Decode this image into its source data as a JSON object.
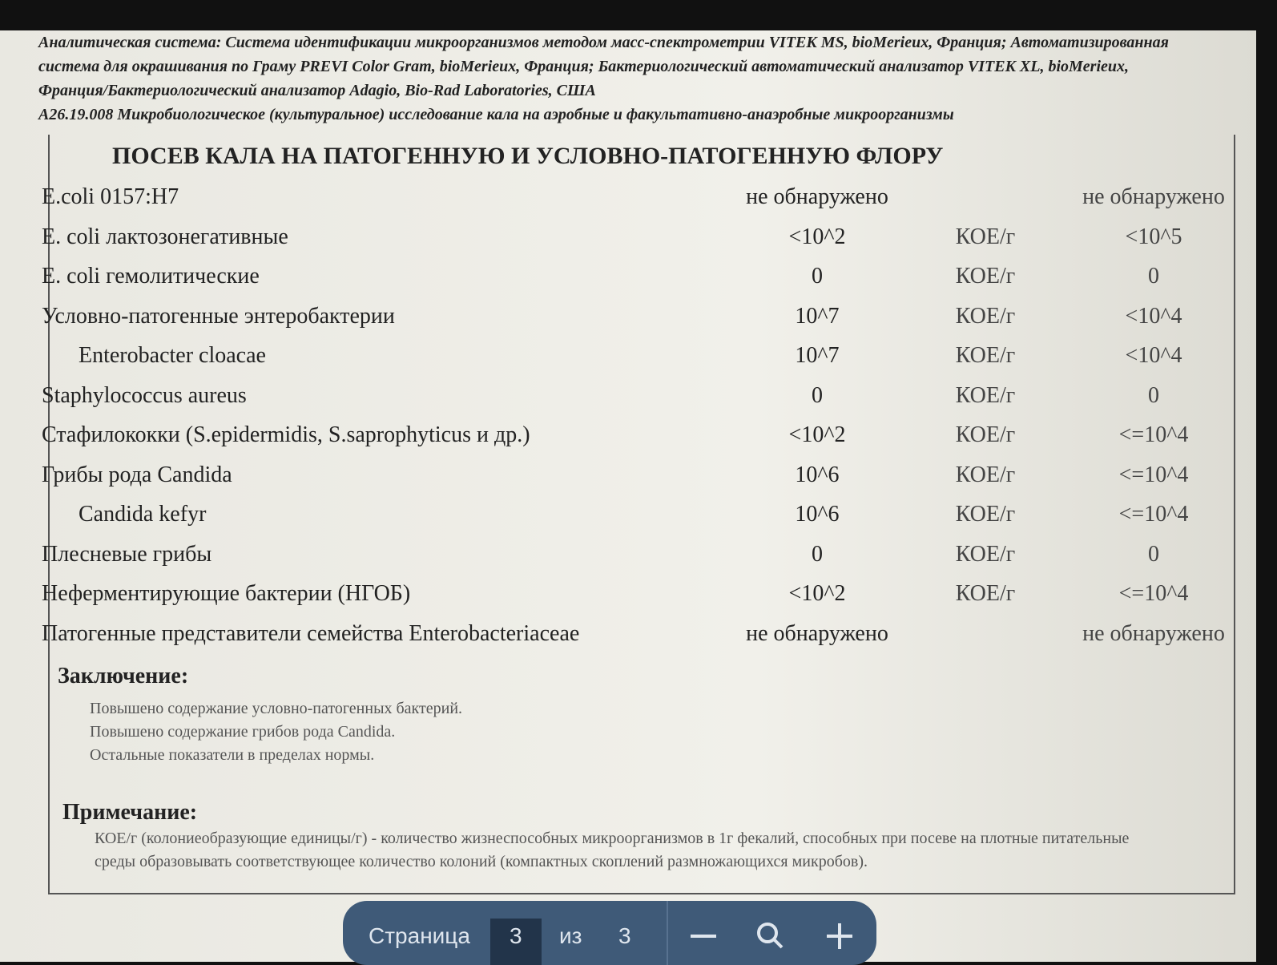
{
  "header": {
    "lines": [
      "Аналитическая система: Система идентификации микроорганизмов методом масс-спектрометрии VITEK MS, bioMerieux, Франция; Автоматизированная система для окрашивания по Граму PREVI Color Gram, bioMerieux, Франция; Бактериологический автоматический анализатор VITEK XL, bioMerieux, Франция/Бактериологический анализатор Adagio, Bio-Rad Laboratories, США",
      "A26.19.008 Микробиологическое (культуральное) исследование кала на аэробные и факультативно-анаэробные микроорганизмы"
    ]
  },
  "report": {
    "title": "ПОСЕВ КАЛА НА ПАТОГЕННУЮ И УСЛОВНО-ПАТОГЕННУЮ ФЛОРУ",
    "rows": [
      {
        "name": "E.coli 0157:H7",
        "result": "не обнаружено",
        "norm": "не обнаружено"
      },
      {
        "name": "E. coli лактозонегативные",
        "result": "<10^2",
        "unit": "КОЕ/г",
        "norm": "<10^5"
      },
      {
        "name": "E. coli гемолитические",
        "result": "0",
        "unit": "КОЕ/г",
        "norm": "0"
      },
      {
        "name": "Условно-патогенные энтеробактерии",
        "result": "10^7",
        "unit": "КОЕ/г",
        "norm": "<10^4"
      },
      {
        "name": "Enterobacter cloacae",
        "result": "10^7",
        "unit": "КОЕ/г",
        "norm": "<10^4"
      },
      {
        "name": "Staphylococcus aureus",
        "result": "0",
        "unit": "КОЕ/г",
        "norm": "0"
      },
      {
        "name": "Стафилококки (S.epidermidis, S.saprophyticus и др.)",
        "result": "<10^2",
        "unit": "КОЕ/г",
        "norm": "<=10^4"
      },
      {
        "name": "Грибы рода Candida",
        "result": "10^6",
        "unit": "КОЕ/г",
        "norm": "<=10^4"
      },
      {
        "name": "Candida kefyr",
        "result": "10^6",
        "unit": "КОЕ/г",
        "norm": "<=10^4"
      },
      {
        "name": "Плесневые грибы",
        "result": "0",
        "unit": "КОЕ/г",
        "norm": "0"
      },
      {
        "name": "Неферментирующие бактерии (НГОБ)",
        "result": "<10^2",
        "unit": "КОЕ/г",
        "norm": "<=10^4"
      },
      {
        "name": "Патогенные представители семейства Enterobacteriaceae",
        "result": "не обнаружено",
        "norm": "не обнаружено"
      }
    ],
    "conclusion": {
      "label": "Заключение:",
      "lines": [
        "Повышено содержание условно-патогенных бактерий.",
        "Повышено содержание грибов рода Candida.",
        "Остальные показатели в пределах нормы."
      ]
    },
    "note": {
      "label": "Примечание:",
      "text": "КОЕ/г (колониеобразующие единицы/г) - количество жизнеспособных микроорганизмов в 1г фекалий, способных при посеве на плотные питательные среды образовывать соответствующее количество колоний (компактных скоплений размножающихся микробов)."
    }
  },
  "toolbar": {
    "page_label": "Страница",
    "page": "3",
    "of": "из",
    "total": "3"
  }
}
